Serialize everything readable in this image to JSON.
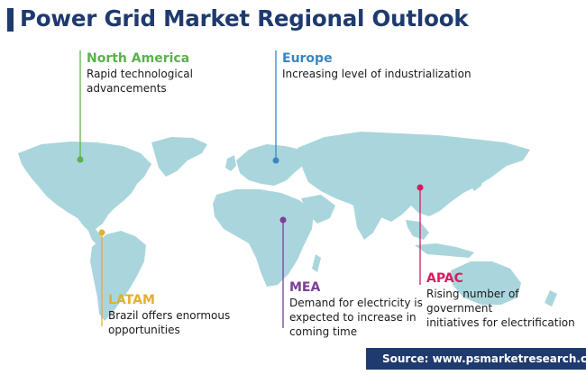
{
  "title": "Power Grid Market Regional Outlook",
  "colors": {
    "land": "#a9d6dc",
    "title": "#1e3a6e",
    "north_america": "#5ab34a",
    "europe": "#3a86c0",
    "apac": "#d81b60",
    "mea": "#7b3f98",
    "latam": "#e0b030"
  },
  "regions": {
    "north_america": {
      "name": "North America",
      "description": "Rapid technological\nadvancements"
    },
    "europe": {
      "name": "Europe",
      "description": "Increasing level of industrialization"
    },
    "apac": {
      "name": "APAC",
      "description": "Rising number of government\ninitiatives for electrification"
    },
    "mea": {
      "name": "MEA",
      "description": "Demand for electricity is\nexpected to increase in\ncoming time"
    },
    "latam": {
      "name": "LATAM",
      "description": "Brazil offers enormous\nopportunities"
    }
  },
  "source": "Source: www.psmarketresearch.com"
}
